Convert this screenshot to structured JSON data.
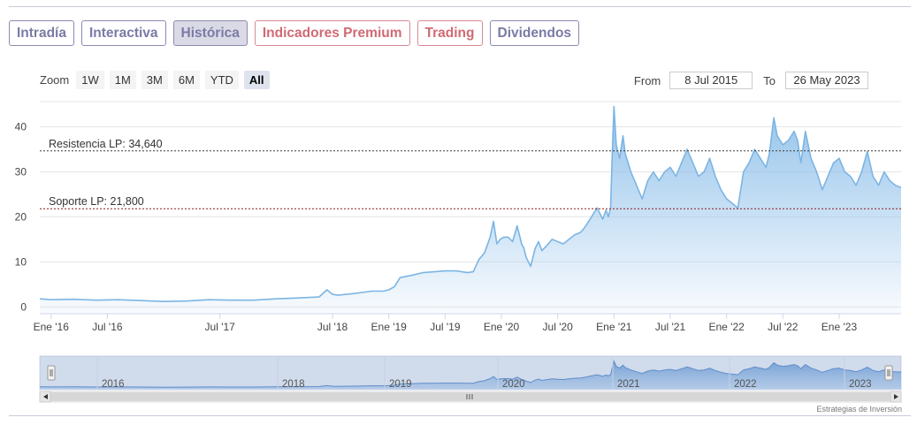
{
  "tabs": [
    {
      "label": "Intradía",
      "active": false,
      "style": "default"
    },
    {
      "label": "Interactiva",
      "active": false,
      "style": "default"
    },
    {
      "label": "Histórica",
      "active": true,
      "style": "default"
    },
    {
      "label": "Indicadores Premium",
      "active": false,
      "style": "red"
    },
    {
      "label": "Trading",
      "active": false,
      "style": "red"
    },
    {
      "label": "Dividendos",
      "active": false,
      "style": "default"
    }
  ],
  "zoom": {
    "label": "Zoom",
    "buttons": [
      "1W",
      "1M",
      "3M",
      "6M",
      "YTD",
      "All"
    ],
    "selected": "All"
  },
  "range": {
    "from_label": "From",
    "from_value": "8 Jul 2015",
    "to_label": "To",
    "to_value": "26 May 2023"
  },
  "credit": "Estrategias de Inversión",
  "colors": {
    "line": "#7cb5e3",
    "fill_top": "#8fc0ea",
    "resistance": "#3a3a3a",
    "support": "#8b1a1a"
  },
  "chart_data": {
    "type": "area",
    "yticks": [
      0,
      10,
      20,
      30,
      40
    ],
    "ylim": [
      -1.5,
      45
    ],
    "xlim": [
      2015.9,
      2023.55
    ],
    "xtick_labels": [
      {
        "label": "Ene '16",
        "x": 2016.0
      },
      {
        "label": "Jul '16",
        "x": 2016.5
      },
      {
        "label": "Jul '17",
        "x": 2017.5
      },
      {
        "label": "Jul '18",
        "x": 2018.5
      },
      {
        "label": "Ene '19",
        "x": 2019.0
      },
      {
        "label": "Jul '19",
        "x": 2019.5
      },
      {
        "label": "Ene '20",
        "x": 2020.0
      },
      {
        "label": "Jul '20",
        "x": 2020.5
      },
      {
        "label": "Ene '21",
        "x": 2021.0
      },
      {
        "label": "Jul '21",
        "x": 2021.5
      },
      {
        "label": "Ene '22",
        "x": 2022.0
      },
      {
        "label": "Jul '22",
        "x": 2022.5
      },
      {
        "label": "Ene '23",
        "x": 2023.0
      }
    ],
    "lines": [
      {
        "label": "Resistencia LP: 34,640",
        "value": 34.64,
        "color": "#3a3a3a"
      },
      {
        "label": "Soporte LP: 21,800",
        "value": 21.8,
        "color": "#8b1a1a"
      }
    ],
    "series": [
      {
        "x": [
          2015.9,
          2016.0,
          2016.2,
          2016.4,
          2016.6,
          2016.8,
          2017.0,
          2017.2,
          2017.4,
          2017.6,
          2017.8,
          2018.0,
          2018.2,
          2018.38,
          2018.45,
          2018.5,
          2018.55,
          2018.7,
          2018.85,
          2018.95,
          2019.0,
          2019.05,
          2019.1,
          2019.2,
          2019.3,
          2019.4,
          2019.5,
          2019.6,
          2019.7,
          2019.75,
          2019.8,
          2019.85,
          2019.9,
          2019.93,
          2019.96,
          2019.99,
          2020.02,
          2020.06,
          2020.1,
          2020.14,
          2020.18,
          2020.2,
          2020.22,
          2020.26,
          2020.3,
          2020.33,
          2020.36,
          2020.4,
          2020.45,
          2020.5,
          2020.55,
          2020.6,
          2020.65,
          2020.7,
          2020.72,
          2020.75,
          2020.8,
          2020.85,
          2020.9,
          2020.93,
          2020.95,
          2020.97,
          2020.985,
          2021.0,
          2021.02,
          2021.05,
          2021.08,
          2021.1,
          2021.15,
          2021.2,
          2021.25,
          2021.3,
          2021.35,
          2021.4,
          2021.45,
          2021.5,
          2021.55,
          2021.6,
          2021.65,
          2021.7,
          2021.75,
          2021.8,
          2021.85,
          2021.9,
          2021.95,
          2022.0,
          2022.05,
          2022.1,
          2022.15,
          2022.2,
          2022.25,
          2022.3,
          2022.35,
          2022.38,
          2022.42,
          2022.45,
          2022.5,
          2022.55,
          2022.6,
          2022.63,
          2022.66,
          2022.7,
          2022.75,
          2022.8,
          2022.85,
          2022.9,
          2022.95,
          2023.0,
          2023.05,
          2023.1,
          2023.15,
          2023.2,
          2023.25,
          2023.3,
          2023.35,
          2023.4,
          2023.45,
          2023.5,
          2023.55
        ],
        "y": [
          1.8,
          1.6,
          1.7,
          1.5,
          1.6,
          1.4,
          1.2,
          1.3,
          1.6,
          1.5,
          1.5,
          1.8,
          2.0,
          2.2,
          3.8,
          2.8,
          2.6,
          3.0,
          3.5,
          3.5,
          3.8,
          4.5,
          6.5,
          7.0,
          7.6,
          7.8,
          8.0,
          8.0,
          7.6,
          7.8,
          10.5,
          12.0,
          15.5,
          19.0,
          14.0,
          15.0,
          15.5,
          15.5,
          14.5,
          18.0,
          14.0,
          13.0,
          11.0,
          9.0,
          13.0,
          14.5,
          12.5,
          13.5,
          15.0,
          14.5,
          14.0,
          15.0,
          16.0,
          16.5,
          17.0,
          18.0,
          20.0,
          22.0,
          19.5,
          21.5,
          20.0,
          22.0,
          34.0,
          44.5,
          36.0,
          33.0,
          38.0,
          34.0,
          30.0,
          27.0,
          24.0,
          28.0,
          30.0,
          28.0,
          30.0,
          31.0,
          29.0,
          32.0,
          35.0,
          32.0,
          29.0,
          30.0,
          33.0,
          29.0,
          26.0,
          24.0,
          23.0,
          22.0,
          30.0,
          32.0,
          35.0,
          33.0,
          31.0,
          34.0,
          42.0,
          38.0,
          36.0,
          37.0,
          39.0,
          37.0,
          32.0,
          39.0,
          33.0,
          30.0,
          26.0,
          29.0,
          32.0,
          33.0,
          30.0,
          29.0,
          27.0,
          30.0,
          34.5,
          29.0,
          27.0,
          30.0,
          28.0,
          27.0,
          26.5
        ]
      }
    ]
  },
  "navigator": {
    "year_labels": [
      "2016",
      "2018",
      "2019",
      "2020",
      "2021",
      "2022",
      "2023"
    ]
  }
}
